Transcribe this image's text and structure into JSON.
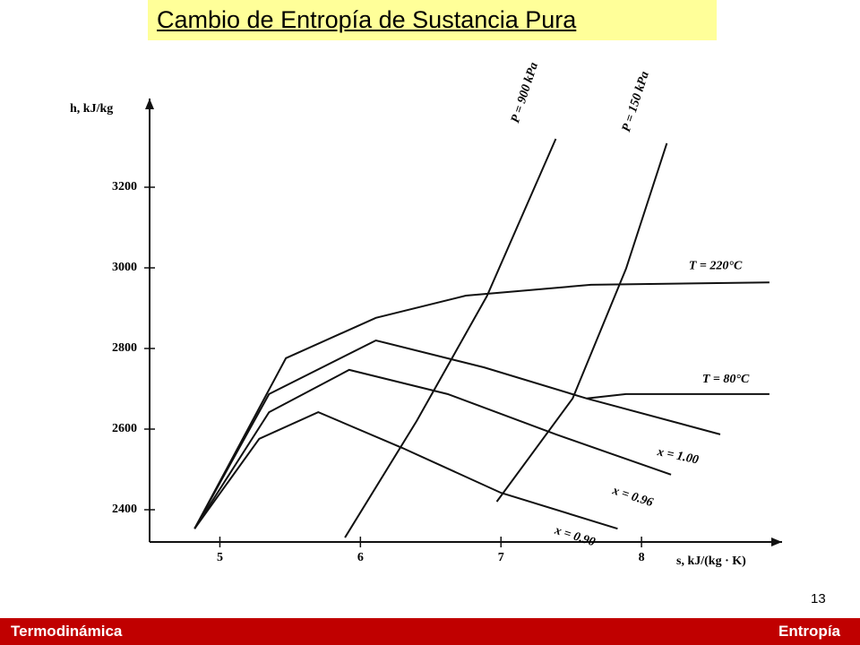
{
  "chart_data": {
    "type": "line",
    "title": "Cambio de Entropía de Sustancia Pura",
    "x_label": "s, kJ/(kg · K)",
    "y_label": "h, kJ/kg",
    "xlim": [
      4.5,
      9
    ],
    "ylim": [
      2320,
      3420
    ],
    "xticks": [
      5,
      6,
      7,
      8
    ],
    "yticks": [
      2400,
      2600,
      2800,
      3000,
      3200
    ],
    "series": [
      {
        "name": "x = 1.00",
        "color": "#111111",
        "x": [
          4.82,
          5.35,
          6.11,
          6.88,
          7.61,
          8.56
        ],
        "values": [
          2353,
          2687,
          2820,
          2753,
          2676,
          2587
        ]
      },
      {
        "name": "x = 0.96",
        "color": "#111111",
        "x": [
          4.82,
          5.35,
          5.92,
          6.62,
          7.39,
          8.21
        ],
        "values": [
          2353,
          2642,
          2747,
          2687,
          2587,
          2487
        ]
      },
      {
        "name": "x = 0.90",
        "color": "#111111",
        "x": [
          4.82,
          5.28,
          5.7,
          6.3,
          7.0,
          7.83
        ],
        "values": [
          2353,
          2576,
          2642,
          2553,
          2442,
          2353
        ]
      },
      {
        "name": "T = 220°C",
        "color": "#111111",
        "x": [
          4.82,
          5.47,
          6.11,
          6.75,
          7.64,
          8.91
        ],
        "values": [
          2353,
          2776,
          2876,
          2931,
          2958,
          2964
        ]
      },
      {
        "name": "T = 80°C",
        "color": "#111111",
        "x": [
          7.61,
          7.89,
          8.91
        ],
        "values": [
          2676,
          2687,
          2687
        ]
      },
      {
        "name": "P = 900 kPa",
        "color": "#111111",
        "x": [
          5.89,
          6.4,
          6.9,
          7.39
        ],
        "values": [
          2331,
          2620,
          2930,
          3320
        ]
      },
      {
        "name": "P = 150 kPa",
        "color": "#111111",
        "x": [
          6.97,
          7.51,
          7.89,
          8.18
        ],
        "values": [
          2420,
          2676,
          2998,
          3309
        ]
      }
    ]
  },
  "page_number": "13",
  "footer": {
    "left": "Termodinámica",
    "right": "Entropía"
  }
}
